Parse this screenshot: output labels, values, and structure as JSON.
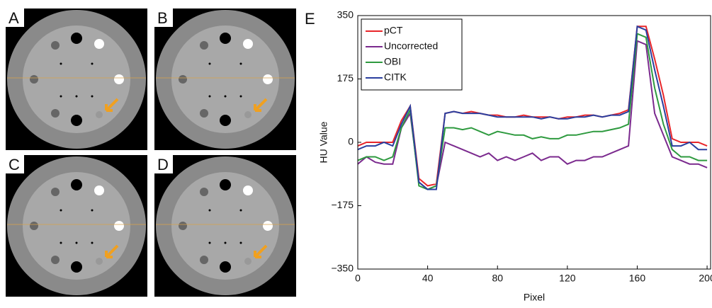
{
  "panels": [
    {
      "label": "A"
    },
    {
      "label": "B"
    },
    {
      "label": "C"
    },
    {
      "label": "D"
    }
  ],
  "chart_data": {
    "type": "line",
    "panel_label": "E",
    "x_label": "Pixel",
    "y_label": "HU Value",
    "x": [
      0,
      5,
      10,
      15,
      20,
      25,
      30,
      35,
      40,
      45,
      50,
      55,
      60,
      65,
      70,
      75,
      80,
      85,
      90,
      95,
      100,
      105,
      110,
      115,
      120,
      125,
      130,
      135,
      140,
      145,
      150,
      155,
      160,
      165,
      170,
      175,
      180,
      185,
      190,
      195,
      200
    ],
    "series": [
      {
        "name": "pCT",
        "color": "#e8262a",
        "values": [
          -10,
          0,
          0,
          0,
          0,
          60,
          100,
          -100,
          -120,
          -115,
          80,
          85,
          80,
          85,
          80,
          75,
          75,
          70,
          70,
          75,
          70,
          70,
          70,
          65,
          70,
          70,
          75,
          75,
          70,
          75,
          80,
          90,
          320,
          320,
          230,
          130,
          10,
          0,
          0,
          0,
          -10
        ]
      },
      {
        "name": "Uncorrected",
        "color": "#7b2a8e",
        "values": [
          -60,
          -40,
          -55,
          -60,
          -60,
          40,
          80,
          -110,
          -130,
          -120,
          0,
          -10,
          -20,
          -30,
          -40,
          -30,
          -50,
          -40,
          -50,
          -40,
          -30,
          -50,
          -40,
          -40,
          -60,
          -50,
          -50,
          -40,
          -40,
          -30,
          -20,
          -10,
          280,
          270,
          80,
          20,
          -40,
          -50,
          -60,
          -60,
          -70
        ]
      },
      {
        "name": "OBI",
        "color": "#2e9a3f",
        "values": [
          -50,
          -40,
          -40,
          -50,
          -40,
          40,
          90,
          -120,
          -130,
          -120,
          40,
          40,
          35,
          40,
          30,
          20,
          30,
          25,
          20,
          20,
          10,
          15,
          10,
          10,
          20,
          20,
          25,
          30,
          30,
          35,
          40,
          50,
          300,
          290,
          150,
          50,
          -20,
          -40,
          -40,
          -50,
          -50
        ]
      },
      {
        "name": "CITK",
        "color": "#2a3f9f",
        "values": [
          -20,
          -10,
          -10,
          0,
          -10,
          50,
          100,
          -110,
          -130,
          -130,
          80,
          85,
          80,
          80,
          80,
          75,
          70,
          70,
          70,
          70,
          70,
          65,
          70,
          65,
          65,
          70,
          70,
          75,
          70,
          75,
          75,
          85,
          320,
          310,
          200,
          100,
          -10,
          -10,
          0,
          -20,
          -20
        ]
      }
    ],
    "xlim": [
      0,
      202
    ],
    "ylim": [
      -350,
      350
    ],
    "xticks": [
      0,
      40,
      80,
      120,
      160,
      200
    ],
    "yticks": [
      {
        "value": -350,
        "label": "−350"
      },
      {
        "value": -175,
        "label": "−175"
      },
      0,
      175,
      350
    ]
  }
}
